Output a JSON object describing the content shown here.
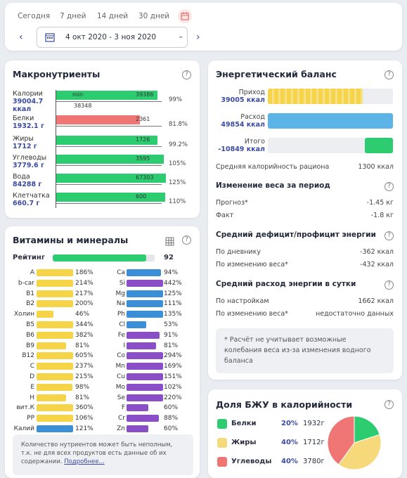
{
  "header": {
    "periods": [
      "Сегодня",
      "7 дней",
      "14 дней",
      "30 дней"
    ],
    "calendar_icon": "calendar-icon",
    "date_range": "4 окт 2020 - 3 ноя 2020"
  },
  "macros": {
    "title": "Макронутриенты",
    "rows": [
      {
        "name": "Калории",
        "value": "39004.7 ккал",
        "bar_label_left": "min",
        "bar_label_right": "39386",
        "extra": "38348",
        "pct": "99%",
        "fill": 0.99,
        "color": "#2ecc71"
      },
      {
        "name": "Белки",
        "value": "1932.1 г",
        "bar_label_right": "2361",
        "pct": "81.8%",
        "fill": 0.818,
        "color": "#f07575"
      },
      {
        "name": "Жиры",
        "value": "1712 г",
        "bar_label_right": "1726",
        "pct": "99.2%",
        "fill": 0.992,
        "color": "#2ecc71"
      },
      {
        "name": "Углеводы",
        "value": "3779.6 г",
        "bar_label_right": "3595",
        "pct": "105%",
        "fill": 1.05,
        "color": "#2ecc71"
      },
      {
        "name": "Вода",
        "value": "84288 г",
        "bar_label_right": "67303",
        "pct": "125%",
        "fill": 1.25,
        "color": "#2ecc71"
      },
      {
        "name": "Клетчатка",
        "value": "660.7 г",
        "bar_label_right": "600",
        "pct": "110%",
        "fill": 1.1,
        "color": "#2ecc71"
      }
    ]
  },
  "vitamins": {
    "title": "Витамины и минералы",
    "rating_label": "Рейтинг",
    "rating_value": "92",
    "rating": 0.92,
    "left": [
      {
        "n": "A",
        "p": "186%",
        "c": "#f5d547",
        "v": 1.86
      },
      {
        "n": "b-car",
        "p": "214%",
        "c": "#f5d547",
        "v": 2.14
      },
      {
        "n": "B1",
        "p": "217%",
        "c": "#f5d547",
        "v": 2.17
      },
      {
        "n": "B2",
        "p": "200%",
        "c": "#f5d547",
        "v": 2.0
      },
      {
        "n": "Холин",
        "p": "46%",
        "c": "#f5d547",
        "v": 0.46
      },
      {
        "n": "B5",
        "p": "344%",
        "c": "#f5d547",
        "v": 3.44
      },
      {
        "n": "B6",
        "p": "382%",
        "c": "#f5d547",
        "v": 3.82
      },
      {
        "n": "B9",
        "p": "81%",
        "c": "#f5d547",
        "v": 0.81
      },
      {
        "n": "B12",
        "p": "605%",
        "c": "#f5d547",
        "v": 6.05
      },
      {
        "n": "C",
        "p": "237%",
        "c": "#f5d547",
        "v": 2.37
      },
      {
        "n": "D",
        "p": "215%",
        "c": "#f5d547",
        "v": 2.15
      },
      {
        "n": "E",
        "p": "98%",
        "c": "#f5d547",
        "v": 0.98
      },
      {
        "n": "H",
        "p": "81%",
        "c": "#f5d547",
        "v": 0.81
      },
      {
        "n": "вит.К",
        "p": "360%",
        "c": "#f5d547",
        "v": 3.6
      },
      {
        "n": "PP",
        "p": "106%",
        "c": "#f5d547",
        "v": 1.06
      },
      {
        "n": "Калий",
        "p": "121%",
        "c": "#3b8fd6",
        "v": 1.21
      }
    ],
    "right": [
      {
        "n": "Ca",
        "p": "94%",
        "c": "#3b8fd6",
        "v": 0.94
      },
      {
        "n": "Si",
        "p": "442%",
        "c": "#8a4fc6",
        "v": 4.42
      },
      {
        "n": "Mg",
        "p": "125%",
        "c": "#3b8fd6",
        "v": 1.25
      },
      {
        "n": "Na",
        "p": "111%",
        "c": "#3b8fd6",
        "v": 1.11
      },
      {
        "n": "Ph",
        "p": "135%",
        "c": "#3b8fd6",
        "v": 1.35
      },
      {
        "n": "Cl",
        "p": "53%",
        "c": "#3b8fd6",
        "v": 0.53
      },
      {
        "n": "Fe",
        "p": "91%",
        "c": "#8a4fc6",
        "v": 0.91
      },
      {
        "n": "I",
        "p": "81%",
        "c": "#8a4fc6",
        "v": 0.81
      },
      {
        "n": "Co",
        "p": "294%",
        "c": "#8a4fc6",
        "v": 2.94
      },
      {
        "n": "Mn",
        "p": "169%",
        "c": "#8a4fc6",
        "v": 1.69
      },
      {
        "n": "Cu",
        "p": "151%",
        "c": "#8a4fc6",
        "v": 1.51
      },
      {
        "n": "Mo",
        "p": "102%",
        "c": "#8a4fc6",
        "v": 1.02
      },
      {
        "n": "Se",
        "p": "220%",
        "c": "#8a4fc6",
        "v": 2.2
      },
      {
        "n": "F",
        "p": "60%",
        "c": "#8a4fc6",
        "v": 0.6
      },
      {
        "n": "Cr",
        "p": "88%",
        "c": "#8a4fc6",
        "v": 0.88
      },
      {
        "n": "Zn",
        "p": "60%",
        "c": "#8a4fc6",
        "v": 0.6
      }
    ],
    "note": "Количество нутриентов может быть неполным, т.к. не для всех продуктов есть данные об их содержании.",
    "note_link": "Подробнее..."
  },
  "energy": {
    "title": "Энергетический баланс",
    "income_label": "Приход",
    "income_value": "39005 ккал",
    "expense_label": "Расход",
    "expense_value": "49854 ккал",
    "total_label": "Итого",
    "total_value": "-10849 ккал",
    "avg_label": "Средняя калорийность рациона",
    "avg_value": "1300 ккал",
    "weight_title": "Изменение веса за период",
    "forecast_label": "Прогноз*",
    "forecast_value": "-1.45 кг",
    "fact_label": "Факт",
    "fact_value": "-1.8 кг",
    "deficit_title": "Средний дефицит/профицит энергии",
    "by_diary_label": "По дневнику",
    "by_diary_value": "-362 ккал",
    "by_weight_label": "По изменению веса*",
    "by_weight_value": "-432 ккал",
    "spend_title": "Средний расход энергии в сутки",
    "by_settings_label": "По настройкам",
    "by_settings_value": "1662 ккал",
    "by_weight2_label": "По изменению веса*",
    "by_weight2_value": "недостаточно данных",
    "footnote": "* Расчёт не учитывает возможные колебания веса из-за изменения водного баланса"
  },
  "bju": {
    "title": "Доля БЖУ в калорийности",
    "rows": [
      {
        "name": "Белки",
        "pct": "20%",
        "grams": "1932г",
        "color": "#2ecc71"
      },
      {
        "name": "Жиры",
        "pct": "40%",
        "grams": "1712г",
        "color": "#f5d97a"
      },
      {
        "name": "Углеводы",
        "pct": "40%",
        "grams": "3780г",
        "color": "#f07575"
      }
    ]
  }
}
